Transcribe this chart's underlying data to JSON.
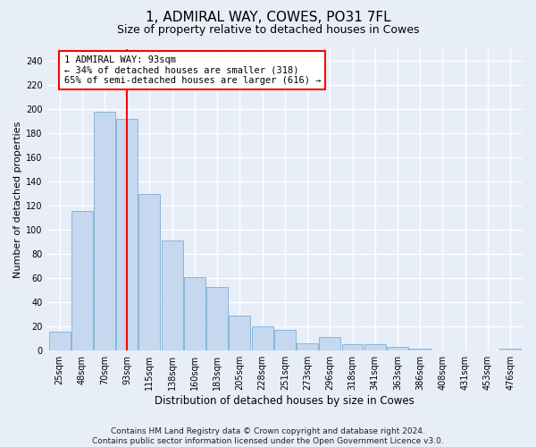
{
  "title": "1, ADMIRAL WAY, COWES, PO31 7FL",
  "subtitle": "Size of property relative to detached houses in Cowes",
  "xlabel": "Distribution of detached houses by size in Cowes",
  "ylabel": "Number of detached properties",
  "categories": [
    "25sqm",
    "48sqm",
    "70sqm",
    "93sqm",
    "115sqm",
    "138sqm",
    "160sqm",
    "183sqm",
    "205sqm",
    "228sqm",
    "251sqm",
    "273sqm",
    "296sqm",
    "318sqm",
    "341sqm",
    "363sqm",
    "386sqm",
    "408sqm",
    "431sqm",
    "453sqm",
    "476sqm"
  ],
  "values": [
    16,
    116,
    198,
    192,
    130,
    91,
    61,
    53,
    29,
    20,
    17,
    6,
    11,
    5,
    5,
    3,
    2,
    0,
    0,
    0,
    2
  ],
  "bar_color": "#c5d8f0",
  "bar_edge_color": "#7bafd4",
  "red_line_index": 3,
  "annotation_line1": "1 ADMIRAL WAY: 93sqm",
  "annotation_line2": "← 34% of detached houses are smaller (318)",
  "annotation_line3": "65% of semi-detached houses are larger (616) →",
  "ylim": [
    0,
    250
  ],
  "yticks": [
    0,
    20,
    40,
    60,
    80,
    100,
    120,
    140,
    160,
    180,
    200,
    220,
    240
  ],
  "footer_line1": "Contains HM Land Registry data © Crown copyright and database right 2024.",
  "footer_line2": "Contains public sector information licensed under the Open Government Licence v3.0.",
  "background_color": "#e8eef8",
  "grid_color": "#ffffff",
  "title_fontsize": 11,
  "subtitle_fontsize": 9,
  "ylabel_fontsize": 8,
  "xlabel_fontsize": 8.5,
  "tick_fontsize": 7,
  "annotation_fontsize": 7.5,
  "footer_fontsize": 6.5
}
